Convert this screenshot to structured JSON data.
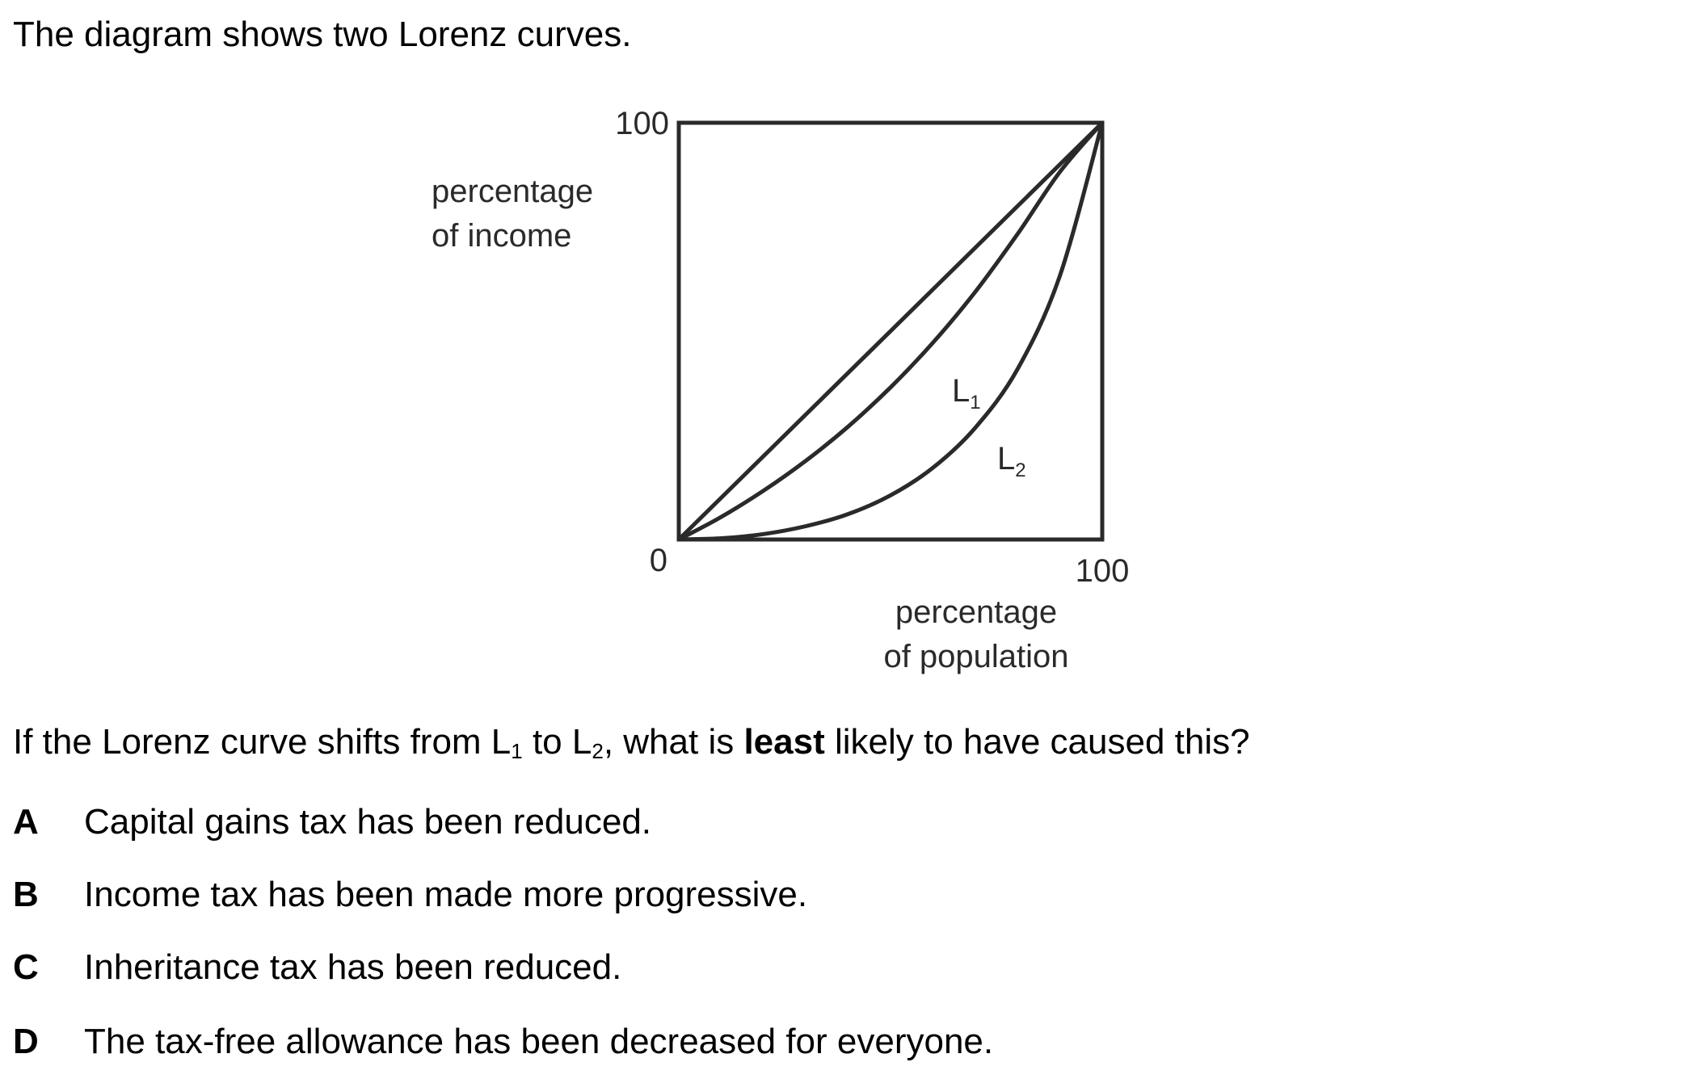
{
  "question": {
    "intro": "The diagram shows two Lorenz curves.",
    "stem_before": "If the Lorenz curve shifts from L",
    "stem_sub1": "1",
    "stem_mid": " to L",
    "stem_sub2": "2",
    "stem_after": ", what is ",
    "stem_bold": "least",
    "stem_end": " likely to have caused this?",
    "options": [
      {
        "letter": "A",
        "text": "Capital gains tax has been reduced."
      },
      {
        "letter": "B",
        "text": "Income tax has been made more progressive."
      },
      {
        "letter": "C",
        "text": "Inheritance tax has been reduced."
      },
      {
        "letter": "D",
        "text": "The tax-free allowance has been decreased for everyone."
      }
    ]
  },
  "chart_data": {
    "type": "line",
    "xlabel_line1": "percentage",
    "xlabel_line2": "of population",
    "ylabel_line1": "percentage",
    "ylabel_line2": "of income",
    "xlim": [
      0,
      100
    ],
    "ylim": [
      0,
      100
    ],
    "origin_label": "0",
    "x_max_label": "100",
    "y_max_label": "100",
    "series": [
      {
        "name": "",
        "x": [
          0,
          100
        ],
        "y": [
          0,
          100
        ]
      },
      {
        "name": "L1",
        "x": [
          0,
          10,
          20,
          30,
          40,
          50,
          60,
          70,
          80,
          90,
          100
        ],
        "y": [
          0,
          5.4,
          11.7,
          18.9,
          27.1,
          36.5,
          47.2,
          59.4,
          73.3,
          88.2,
          100
        ]
      },
      {
        "name": "L2",
        "x": [
          0,
          10,
          20,
          30,
          40,
          50,
          60,
          70,
          80,
          90,
          100
        ],
        "y": [
          0,
          0.3,
          1.3,
          3.2,
          6.1,
          10.6,
          17.2,
          26.8,
          40.9,
          63.3,
          100
        ]
      }
    ],
    "curve_labels": [
      {
        "main": "L",
        "sub": "1",
        "series": "L1"
      },
      {
        "main": "L",
        "sub": "2",
        "series": "L2"
      }
    ]
  }
}
